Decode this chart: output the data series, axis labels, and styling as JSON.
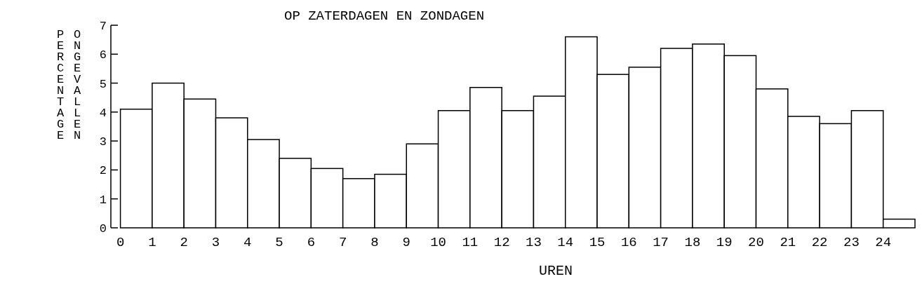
{
  "chart_data": {
    "type": "histogram",
    "title": "OP ZATERDAGEN EN ZONDAGEN",
    "xlabel": "UREN",
    "ylabel": "PERCENTAGE ONGEVALLEN",
    "bins": [
      0,
      1,
      2,
      3,
      4,
      5,
      6,
      7,
      8,
      9,
      10,
      11,
      12,
      13,
      14,
      15,
      16,
      17,
      18,
      19,
      20,
      21,
      22,
      23,
      24,
      25
    ],
    "values": [
      4.1,
      5.0,
      4.45,
      3.8,
      3.05,
      2.4,
      2.05,
      1.7,
      1.85,
      2.9,
      4.05,
      4.85,
      4.05,
      4.55,
      6.6,
      5.3,
      5.55,
      6.2,
      6.35,
      5.95,
      4.8,
      3.85,
      3.6,
      4.05,
      0.3
    ],
    "color": "#ffffff",
    "xlim": [
      -0.3,
      25
    ],
    "xticks": [
      0,
      1,
      2,
      3,
      4,
      5,
      6,
      7,
      8,
      9,
      10,
      11,
      12,
      13,
      14,
      15,
      16,
      17,
      18,
      19,
      20,
      21,
      22,
      23,
      24
    ],
    "ylim": [
      0,
      7
    ],
    "yticks": [
      0,
      1,
      2,
      3,
      4,
      5,
      6,
      7
    ],
    "grid": false
  }
}
